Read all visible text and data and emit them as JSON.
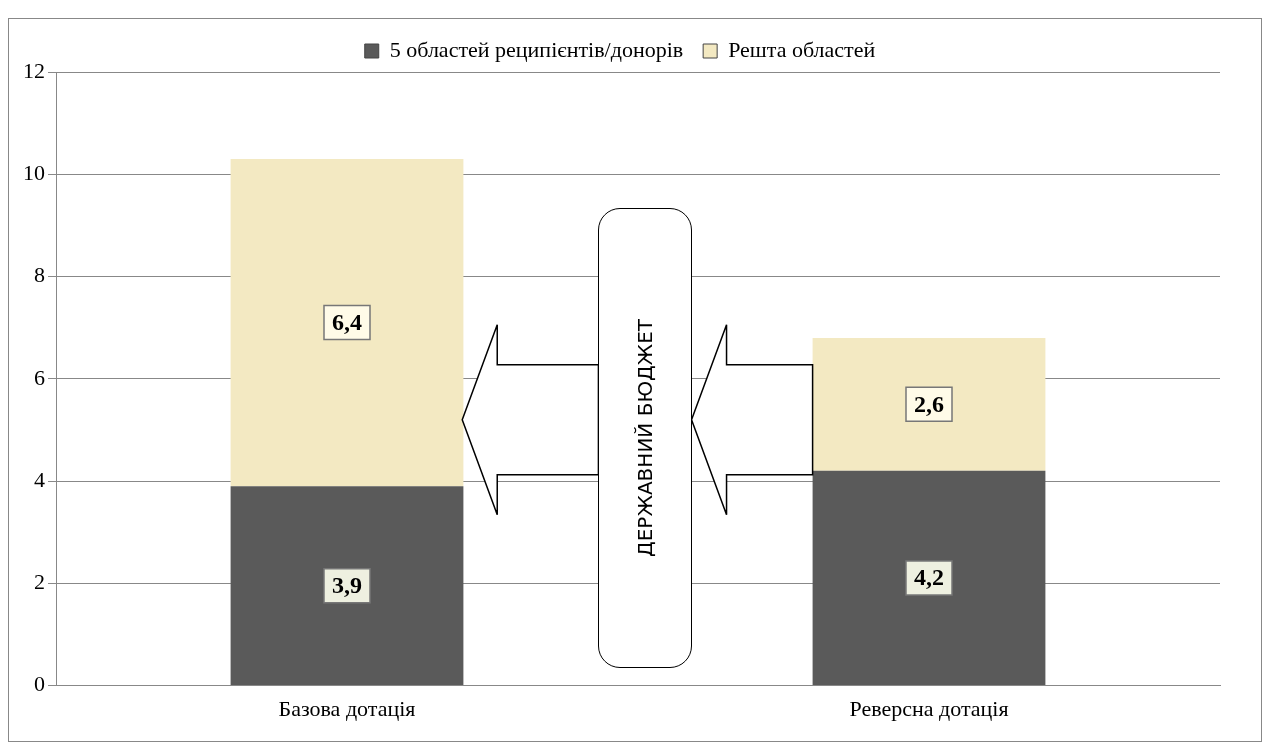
{
  "chart_data": {
    "type": "bar",
    "stacked": true,
    "categories": [
      "Базова дотація",
      "Реверсна дотація"
    ],
    "series": [
      {
        "name": "5 областей реципієнтів/донорів",
        "color": "#5a5a5a",
        "values": [
          3.9,
          4.2
        ],
        "value_labels": [
          "3,9",
          "4,2"
        ]
      },
      {
        "name": "Решта областей",
        "color": "#f3e9c2",
        "values": [
          6.4,
          2.6
        ],
        "value_labels": [
          "6,4",
          "2,6"
        ]
      }
    ],
    "ylim": [
      0,
      12
    ],
    "yticks": [
      0,
      2,
      4,
      6,
      8,
      10,
      12
    ],
    "grid": "y",
    "legend": "top",
    "annotations": [
      "ДЕРЖАВНИЙ БЮДЖЕТ"
    ]
  }
}
